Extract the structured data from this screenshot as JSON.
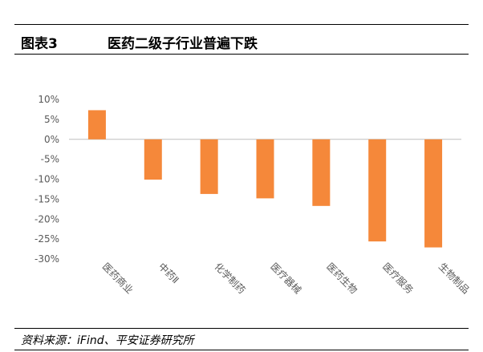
{
  "figure": {
    "label": "图表3",
    "title": "医药二级子行业普遍下跌"
  },
  "source": "资料来源：iFind、平安证券研究所",
  "colors": {
    "bar": "#f5883a",
    "axis": "#bfbfbf",
    "text": "#595959"
  },
  "chart_data": {
    "type": "bar",
    "title": "",
    "xlabel": "",
    "ylabel": "",
    "categories": [
      "医药商业",
      "中药Ⅱ",
      "化学制药",
      "医疗器械",
      "医药生物",
      "医疗服务",
      "生物制品"
    ],
    "values": [
      7.3,
      -10.1,
      -13.7,
      -14.8,
      -16.7,
      -25.6,
      -27.1
    ],
    "ylim": [
      -30,
      10
    ],
    "yticks": [
      10,
      5,
      0,
      -5,
      -10,
      -15,
      -20,
      -25,
      -30
    ],
    "ytick_labels": [
      "10%",
      "5%",
      "0%",
      "-5%",
      "-10%",
      "-15%",
      "-20%",
      "-25%",
      "-30%"
    ],
    "grid": false,
    "legend": "none"
  }
}
